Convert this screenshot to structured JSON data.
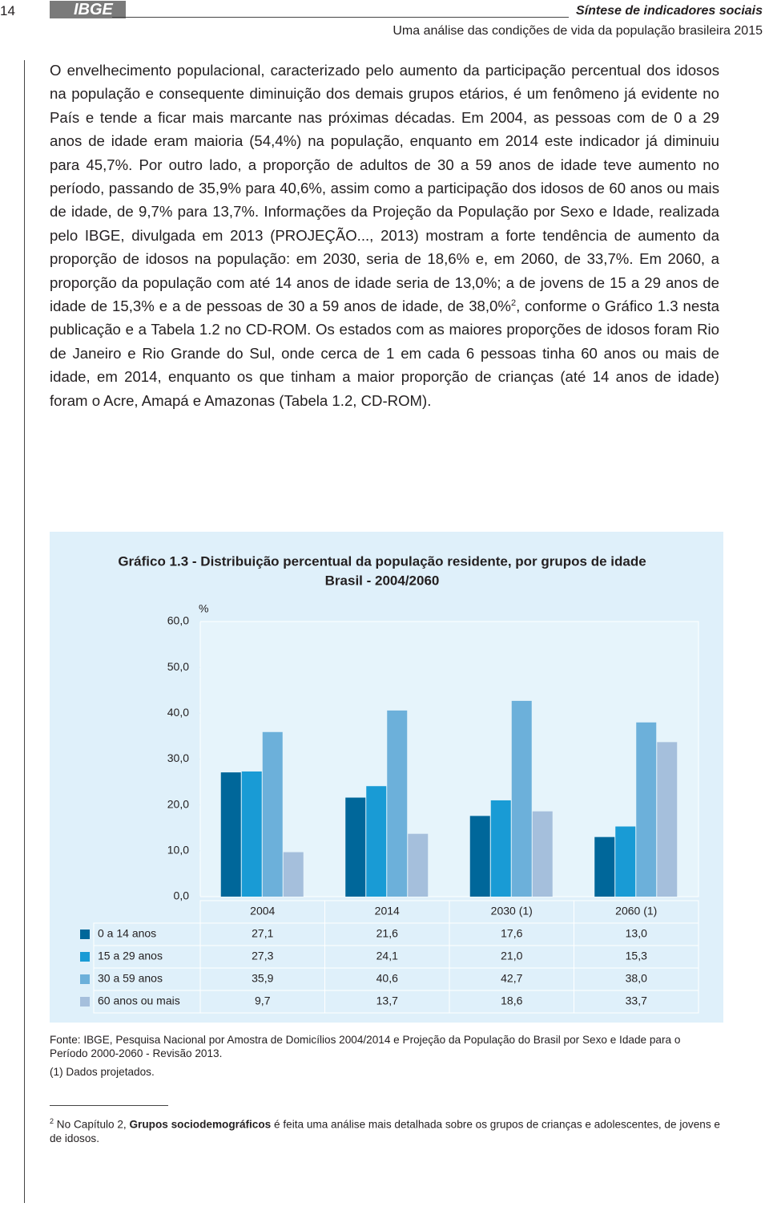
{
  "header": {
    "page_number": "14",
    "logo": "IBGE",
    "publication": "Síntese de indicadores sociais",
    "subtitle": "Uma análise das condições de vida da população brasileira 2015"
  },
  "body": {
    "text_1": "O envelhecimento populacional, caracterizado pelo aumento da participação percentual dos idosos na população e consequente diminuição dos demais grupos etários, é um fenômeno já evidente no País e tende a ficar mais marcante nas próximas décadas. Em 2004, as pessoas com de 0 a 29 anos de idade eram maioria (54,4%) na população, enquanto em 2014 este indicador já diminuiu para 45,7%. Por outro lado, a proporção de adultos de 30 a 59 anos de idade teve aumento no período, passando de 35,9% para 40,6%, assim como a participação dos idosos de 60 anos ou mais de idade, de 9,7% para 13,7%. Informações da Projeção da População por Sexo e Idade, realizada pelo IBGE, divulgada em 2013 (PROJEÇÃO..., 2013) mostram a forte tendência de aumento da proporção de idosos na população: em 2030, seria de 18,6% e, em 2060, de 33,7%. Em 2060, a proporção da população com até 14 anos de idade seria de 13,0%; a de jovens de 15 a 29 anos de idade de 15,3% e a de pessoas de 30 a 59 anos de idade, de 38,0%",
    "superscript": "2",
    "text_2": ", conforme o Gráfico 1.3 nesta publicação e a Tabela 1.2 no CD-ROM. Os estados com as maiores proporções de idosos foram Rio de Janeiro e Rio Grande do Sul, onde cerca de 1 em cada 6 pessoas tinha 60 anos ou mais de idade, em 2014, enquanto os que tinham a maior proporção de crianças (até 14 anos de idade) foram o Acre, Amapá e Amazonas (Tabela 1.2, CD-ROM)."
  },
  "chart_data": {
    "type": "bar",
    "title": "Gráfico 1.3 - Distribuição percentual da população residente, por grupos de idade",
    "subtitle": "Brasil - 2004/2060",
    "y_unit": "%",
    "categories": [
      "2004",
      "2014",
      "2030 (1)",
      "2060 (1)"
    ],
    "series": [
      {
        "name": "0 a 14 anos",
        "color": "#00679a",
        "values": [
          27.1,
          21.6,
          17.6,
          13.0
        ],
        "value_labels": [
          "27,1",
          "21,6",
          "17,6",
          "13,0"
        ]
      },
      {
        "name": "15 a 29 anos",
        "color": "#199bd5",
        "values": [
          27.3,
          24.1,
          21.0,
          15.3
        ],
        "value_labels": [
          "27,3",
          "24,1",
          "21,0",
          "15,3"
        ]
      },
      {
        "name": "30 a 59 anos",
        "color": "#6cb0da",
        "values": [
          35.9,
          40.6,
          42.7,
          38.0
        ],
        "value_labels": [
          "35,9",
          "40,6",
          "42,7",
          "38,0"
        ]
      },
      {
        "name": "60 anos ou mais",
        "color": "#a5bfdc",
        "values": [
          9.7,
          13.7,
          18.6,
          33.7
        ],
        "value_labels": [
          "9,7",
          "13,7",
          "18,6",
          "33,7"
        ]
      }
    ],
    "ylim": [
      0,
      60
    ],
    "yticks": [
      {
        "value": 0,
        "label": "0,0"
      },
      {
        "value": 10,
        "label": "10,0"
      },
      {
        "value": 20,
        "label": "20,0"
      },
      {
        "value": 30,
        "label": "30,0"
      },
      {
        "value": 40,
        "label": "40,0"
      },
      {
        "value": 50,
        "label": "50,0"
      },
      {
        "value": 60,
        "label": "60,0"
      }
    ],
    "source": "Fonte: IBGE, Pesquisa Nacional por Amostra de Domicílios 2004/2014 e Projeção da População do Brasil por Sexo e Idade para o Período 2000-2060 - Revisão 2013.",
    "note": "(1) Dados projetados."
  },
  "footnote": {
    "marker": "2",
    "text_1": "No Capítulo 2, ",
    "bold": "Grupos sociodemográficos",
    "text_2": " é feita uma análise mais detalhada sobre os grupos de crianças e adolescentes, de jovens e de idosos."
  }
}
